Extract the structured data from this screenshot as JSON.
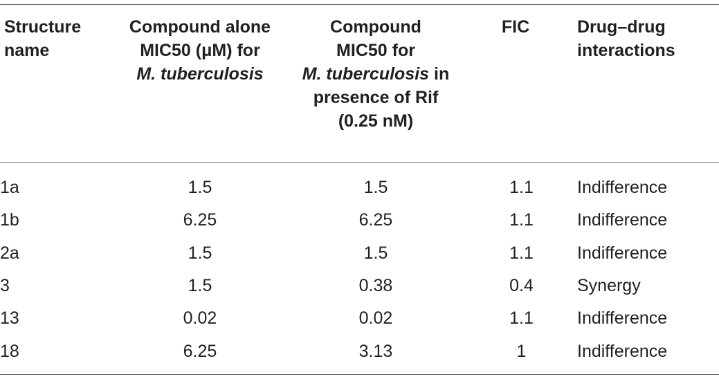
{
  "headers": {
    "structure_name": [
      "Structure",
      "name"
    ],
    "alone": [
      "Compound alone",
      "MIC50 (μM) for",
      "M. tuberculosis"
    ],
    "with_rif": [
      "Compound",
      "MIC50 for",
      "M. tuberculosis",
      " in",
      "presence of Rif",
      "(0.25 nM)"
    ],
    "fic": "FIC",
    "interactions": [
      "Drug–drug",
      "interactions"
    ]
  },
  "rows": [
    {
      "name": "1a",
      "alone": "1.5",
      "with_rif": "1.5",
      "fic": "1.1",
      "interaction": "Indifference"
    },
    {
      "name": "1b",
      "alone": "6.25",
      "with_rif": "6.25",
      "fic": "1.1",
      "interaction": "Indifference"
    },
    {
      "name": "2a",
      "alone": "1.5",
      "with_rif": "1.5",
      "fic": "1.1",
      "interaction": "Indifference"
    },
    {
      "name": "3",
      "alone": "1.5",
      "with_rif": "0.38",
      "fic": "0.4",
      "interaction": "Synergy"
    },
    {
      "name": "13",
      "alone": "0.02",
      "with_rif": "0.02",
      "fic": "1.1",
      "interaction": "Indifference"
    },
    {
      "name": "18",
      "alone": "6.25",
      "with_rif": "3.13",
      "fic": "1",
      "interaction": "Indifference"
    }
  ]
}
